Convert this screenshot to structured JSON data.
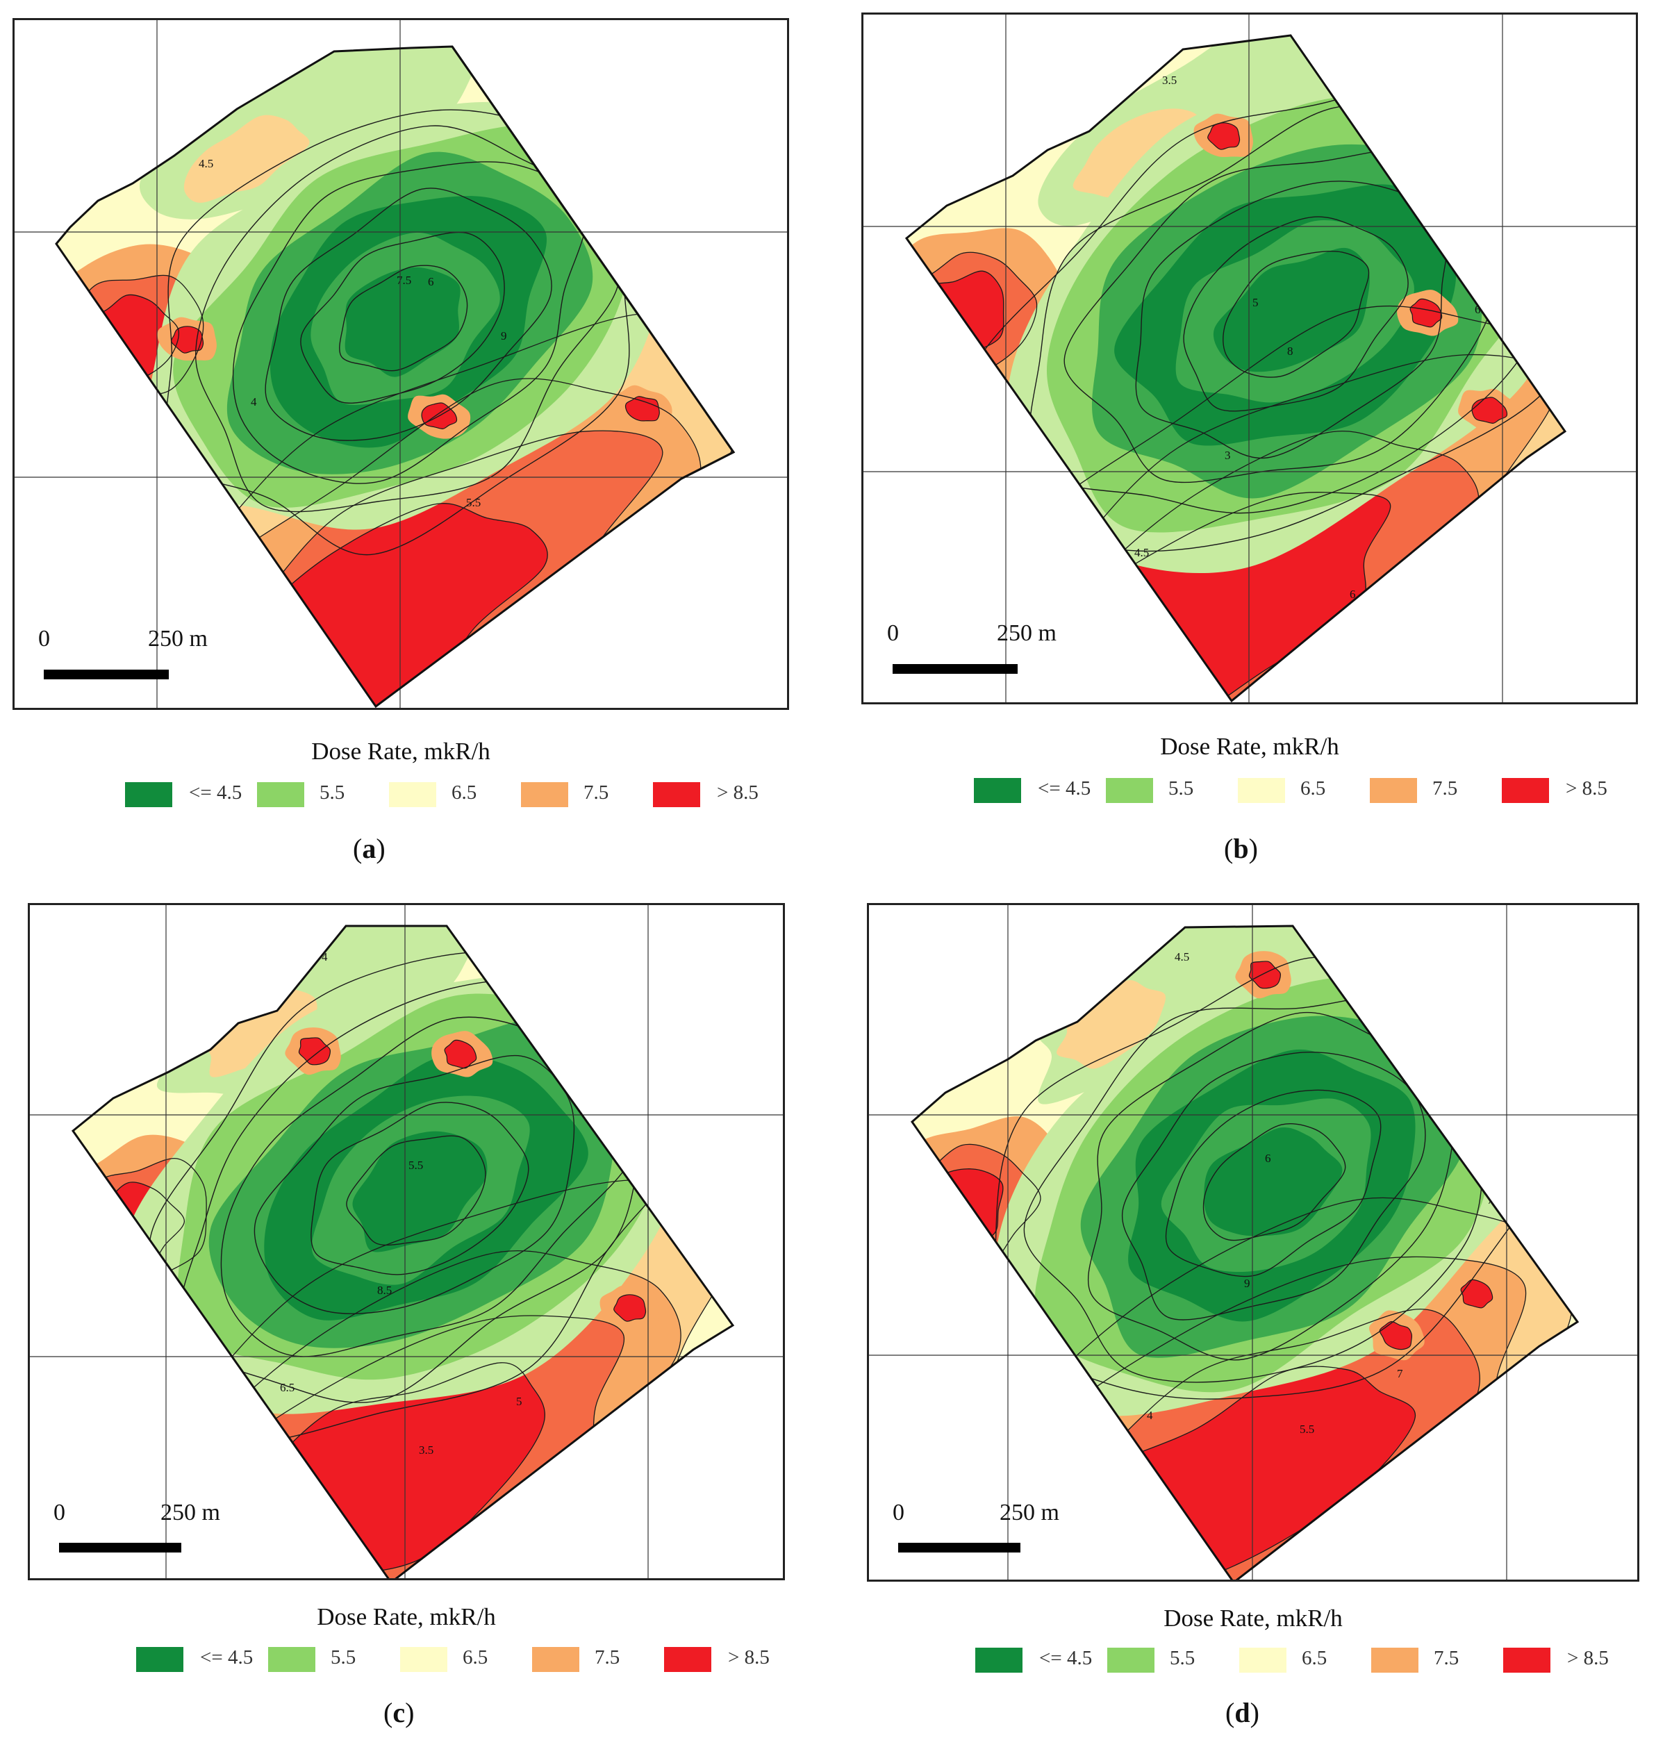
{
  "figure": {
    "legend_title": "Dose Rate, mkR/h",
    "legend_items": [
      {
        "label": "<= 4.5",
        "color": "#118c3c"
      },
      {
        "label": "5.5",
        "color": "#8cd466"
      },
      {
        "label": "6.5",
        "color": "#fefcc6"
      },
      {
        "label": "7.5",
        "color": "#f8a964"
      },
      {
        "label": "> 8.5",
        "color": "#ef1c24"
      }
    ],
    "scale_bar": {
      "zero": "0",
      "distance": "250 m"
    },
    "contour_levels": [
      "3",
      "3.5",
      "4",
      "4.5",
      "5",
      "5.5",
      "6",
      "6.5",
      "7",
      "7.5",
      "8",
      "8.5",
      "9"
    ],
    "panels": [
      {
        "id": "a",
        "open": "(",
        "letter": "a",
        "close": ")"
      },
      {
        "id": "b",
        "open": "(",
        "letter": "b",
        "close": ")"
      },
      {
        "id": "c",
        "open": "(",
        "letter": "c",
        "close": ")"
      },
      {
        "id": "d",
        "open": "(",
        "letter": "d",
        "close": ")"
      }
    ]
  },
  "colors": {
    "dark_green": "#118c3c",
    "mid_green": "#3daa4e",
    "light_green": "#8cd466",
    "pale_green": "#c7eba0",
    "cream": "#fefcc6",
    "light_orange": "#fcd38f",
    "orange": "#f8a964",
    "red_orange": "#f46a45",
    "red": "#ef1c24"
  }
}
